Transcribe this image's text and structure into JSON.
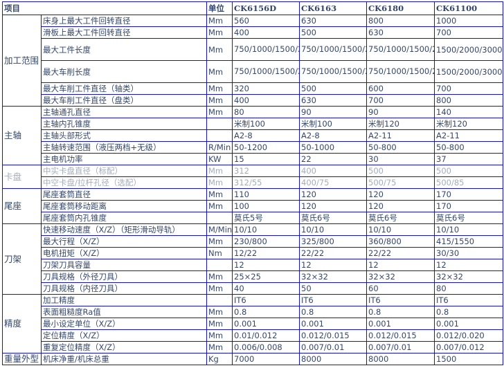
{
  "colors": {
    "border": "#1010e0",
    "text": "#34476a"
  },
  "header": {
    "item": "项目",
    "unit": "单位",
    "models": [
      "CK6156D",
      "CK6163",
      "CK6180",
      "CK61100"
    ]
  },
  "groups": [
    {
      "name": "加工范围",
      "rows": [
        {
          "label": "床身上最大工件回转直径",
          "unit": "Mm",
          "values": [
            "560",
            "630",
            "800",
            "1000"
          ]
        },
        {
          "label": "滑板上最大工件回转直径",
          "unit": "Mm",
          "values": [
            "400",
            "500",
            "630",
            "700"
          ]
        },
        {
          "label": "最大工件长度",
          "unit": "Mm",
          "values": [
            "750/1000/1500/2000/3000",
            "750/1000/1500/2000/3000",
            "750/1000/1500/2000/3000",
            "1500/2000/3000"
          ],
          "tall": true
        },
        {
          "label": "最大车削长度",
          "unit": "Mm",
          "values": [
            "750/1000/1500/2000/3000",
            "750/1000/1500/2000/3000",
            "750/1000/1500/2000/3000",
            "1500/2000/3000"
          ],
          "tall": true
        },
        {
          "label": "最大车削工件直径（轴类）",
          "unit": "Mm",
          "values": [
            "320",
            "500",
            "600",
            "700"
          ]
        },
        {
          "label": "最大车削工件直径（盘类）",
          "unit": "Mm",
          "values": [
            "400",
            "630",
            "700",
            "800"
          ]
        }
      ]
    },
    {
      "name": "主轴",
      "rows": [
        {
          "label": "主轴通孔直径",
          "unit": "Mm",
          "values": [
            "80",
            "90",
            "90",
            "140"
          ]
        },
        {
          "label": "主轴内孔锥度",
          "unit": "",
          "values": [
            "米制100",
            "米制100",
            "米制120",
            "米制120"
          ]
        },
        {
          "label": "主轴头部形式",
          "unit": "",
          "values": [
            "A2-8",
            "A2-8",
            "A2-11",
            "A2-11"
          ]
        },
        {
          "label": "主轴转速范围（液压两档+无级）",
          "unit": "R/Min",
          "values": [
            "50-1200",
            "50-1000",
            "50-800",
            "50-800"
          ]
        },
        {
          "label": "主电机功率",
          "unit": "KW",
          "values": [
            "15",
            "22",
            "30",
            "37"
          ]
        }
      ]
    },
    {
      "name": "卡盘",
      "faded": true,
      "rows": [
        {
          "label": "中实卡盘直径（标配）",
          "unit": "Mm",
          "values": [
            "312",
            "400",
            "500",
            "500"
          ]
        },
        {
          "label": "中空卡盘/拉杆孔径（选配）",
          "unit": "Mm",
          "values": [
            "312/55",
            "400/75",
            "500/75",
            "500/85"
          ]
        }
      ]
    },
    {
      "name": "尾座",
      "rows": [
        {
          "label": "尾座套筒直径",
          "unit": "Mm",
          "values": [
            "110",
            "120",
            "120",
            "170"
          ]
        },
        {
          "label": "尾座套筒移动距离",
          "unit": "Mm",
          "values": [
            "100",
            "120",
            "120",
            "170"
          ]
        },
        {
          "label": "尾座套筒内孔锥度",
          "unit": "",
          "values": [
            "莫氏5号",
            "莫氏6号",
            "莫氏6号",
            "莫氏6号"
          ]
        }
      ]
    },
    {
      "name": "刀架",
      "rows": [
        {
          "label": "快速移动速度（X/Z）（矩形滑动导轨）",
          "unit": "M/Min",
          "values": [
            "10/10",
            "10/10",
            "10/10",
            "10/10"
          ]
        },
        {
          "label": "最大行程（X/Z）",
          "unit": "Mm",
          "values": [
            "230/800",
            "325/800",
            "360/800",
            "415/1550"
          ]
        },
        {
          "label": "电机扭矩（X/Z）",
          "unit": "Nm",
          "values": [
            "12/22",
            "22/22",
            "22/22",
            "30/30"
          ]
        },
        {
          "label": "刀架刀具容量",
          "unit": "",
          "values": [
            "12",
            "12",
            "12",
            "12"
          ]
        },
        {
          "label": "刀具规格（外径刀具）",
          "unit": "Mm",
          "values": [
            "25×25",
            "32×32",
            "32×32",
            "32×32"
          ]
        },
        {
          "label": "刀具规格（内径刀具）",
          "unit": "Mm",
          "values": [
            "40",
            "50",
            "60",
            "80"
          ]
        }
      ]
    },
    {
      "name": "精度",
      "rows": [
        {
          "label": "加工精度",
          "unit": "",
          "values": [
            "IT6",
            "IT6",
            "IT6",
            "IT6"
          ]
        },
        {
          "label": "表面粗糙度Ra值",
          "unit": "Mm",
          "values": [
            "0.8",
            "0.8",
            "0.8",
            "0.8"
          ]
        },
        {
          "label": "最小设定单位（X/Z）",
          "unit": "Mm",
          "values": [
            "0.001",
            "0.001",
            "0.001",
            "0.001"
          ]
        },
        {
          "label": "定位精度（X/Z）",
          "unit": "Mm",
          "values": [
            "0.01/0.012",
            "0.012/0.015",
            "0.012/0.015",
            "0.012/0.020"
          ]
        },
        {
          "label": "重复定位精度（X/Z）",
          "unit": "Mm",
          "values": [
            "0.006/0.008",
            "0.007/0.01",
            "0.007/0.01",
            "0.007/0.012"
          ]
        }
      ]
    },
    {
      "name": "重量外型",
      "rows": [
        {
          "label": "机床净重/机床总重",
          "unit": "Kg",
          "values": [
            "7000",
            "8000",
            "8000",
            "1500"
          ]
        }
      ]
    }
  ]
}
